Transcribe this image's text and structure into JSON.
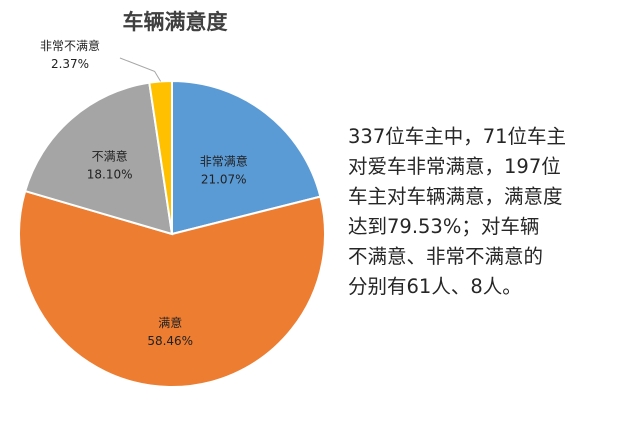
{
  "chart_data": {
    "type": "pie",
    "title": "车辆满意度",
    "slices": [
      {
        "label": "非常满意",
        "value": 21.07,
        "value_text": "21.07%",
        "color": "#5B9BD5"
      },
      {
        "label": "满意",
        "value": 58.46,
        "value_text": "58.46%",
        "color": "#ED7D31"
      },
      {
        "label": "不满意",
        "value": 18.1,
        "value_text": "18.10%",
        "color": "#A5A5A5"
      },
      {
        "label": "非常不满意",
        "value": 2.37,
        "value_text": "2.37%",
        "color": "#FFC000"
      }
    ],
    "start_at": "12 o'clock",
    "direction": "clockwise"
  },
  "summary_lines": [
    "337位车主中，71位车主",
    "对爱车非常满意，197位",
    "车主对车辆满意，满意度",
    "达到79.53%；对车辆",
    "不满意、非常不满意的",
    "分别有61人、8人。"
  ]
}
